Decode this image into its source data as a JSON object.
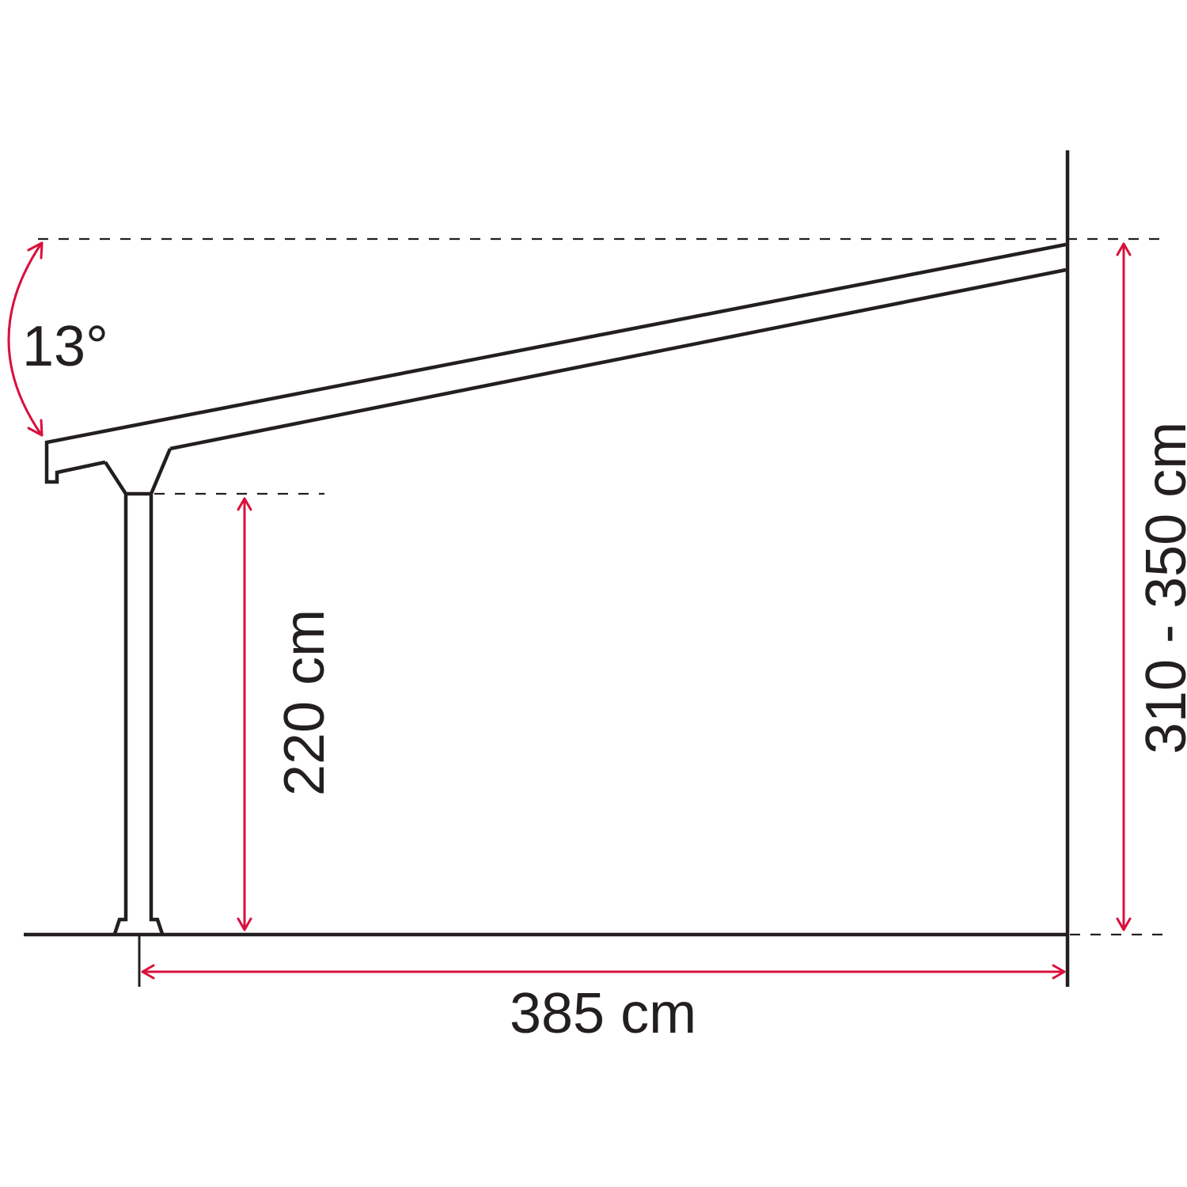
{
  "diagram": {
    "colors": {
      "line": "#231f20",
      "dimension": "#d9103c",
      "background": "#ffffff"
    },
    "labels": {
      "angle": "13°",
      "post_height": "220 cm",
      "wall_height": "310 - 350 cm",
      "depth": "385 cm"
    }
  }
}
